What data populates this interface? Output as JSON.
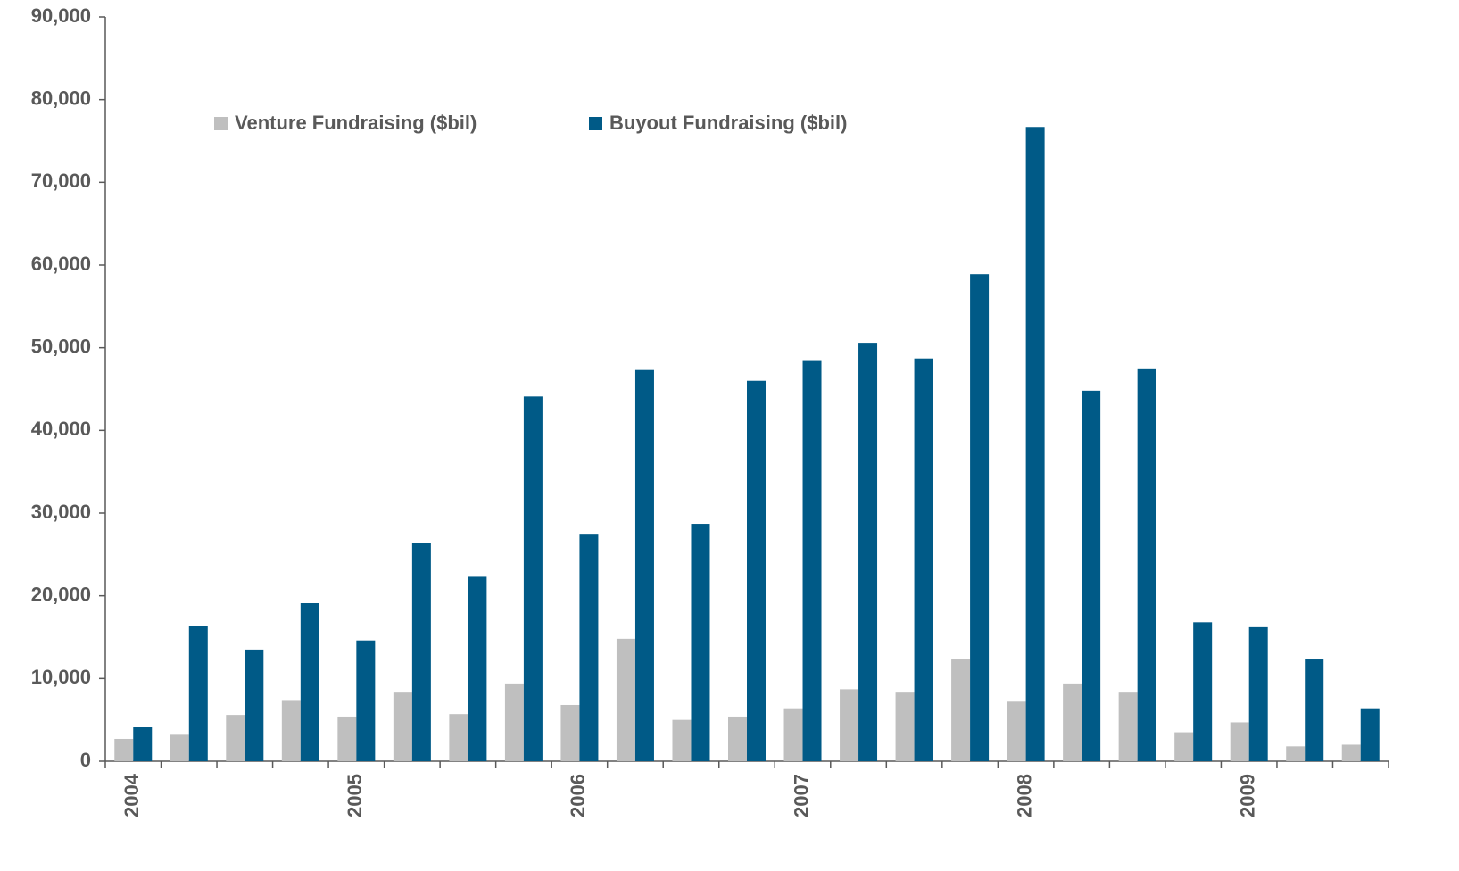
{
  "chart_data": {
    "type": "bar",
    "categories": [
      "2004",
      null,
      null,
      null,
      "2005",
      null,
      null,
      null,
      "2006",
      null,
      null,
      null,
      "2007",
      null,
      null,
      null,
      "2008",
      null,
      null,
      null,
      "2009",
      null,
      null
    ],
    "series": [
      {
        "name": "Venture Fundraising ($bil)",
        "color": "#bfbfbf",
        "values": [
          2700,
          3200,
          5600,
          7400,
          5400,
          8400,
          5700,
          9400,
          6800,
          14800,
          5000,
          5400,
          6400,
          8700,
          8400,
          12300,
          7200,
          9400,
          8400,
          3500,
          4700,
          1800,
          2000
        ]
      },
      {
        "name": "Buyout Fundraising ($bil)",
        "color": "#005a87",
        "values": [
          4100,
          16400,
          13500,
          19100,
          14600,
          26400,
          22400,
          44100,
          27500,
          47300,
          28700,
          46000,
          48500,
          50600,
          48700,
          58900,
          76700,
          44800,
          47500,
          16800,
          16200,
          12300,
          6400
        ]
      }
    ],
    "ylim": [
      0,
      90000
    ],
    "yticks": [
      0,
      {
        "value": 10000,
        "label": "10,000"
      },
      {
        "value": 20000,
        "label": "20,000"
      },
      {
        "value": 30000,
        "label": "30,000"
      },
      {
        "value": 40000,
        "label": "40,000"
      },
      {
        "value": 50000,
        "label": "50,000"
      },
      {
        "value": 60000,
        "label": "60,000"
      },
      {
        "value": 70000,
        "label": "70,000"
      },
      {
        "value": 80000,
        "label": "80,000"
      },
      {
        "value": 90000,
        "label": "90,000"
      }
    ],
    "legend": "top"
  }
}
